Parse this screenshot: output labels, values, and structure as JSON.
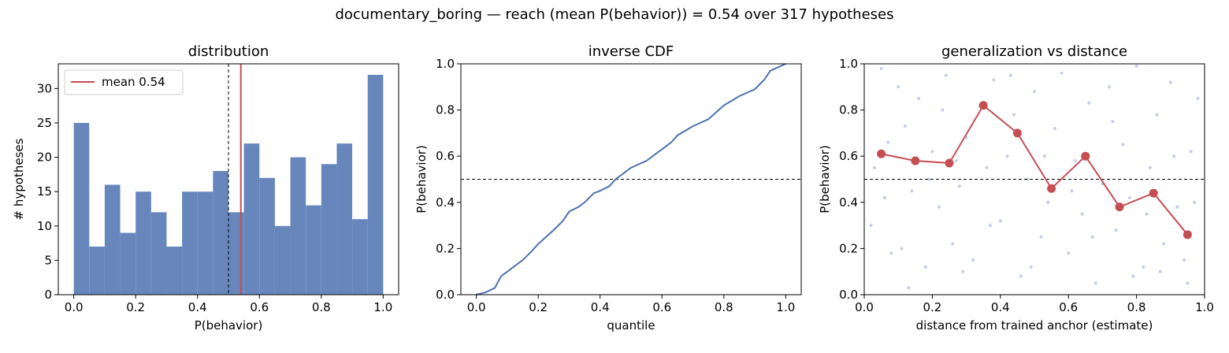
{
  "suptitle": "documentary_boring  —  reach (mean P(behavior)) = 0.54  over 317 hypotheses",
  "colors": {
    "bar": "#6787bc",
    "line": "#4c72b0",
    "accent": "#c44e52",
    "scatter": "#b4c3de"
  },
  "chart_data": [
    {
      "type": "bar",
      "title": "distribution",
      "xlabel": "P(behavior)",
      "ylabel": "# hypotheses",
      "xlim": [
        -0.05,
        1.05
      ],
      "ylim": [
        0,
        33.6
      ],
      "xticks": [
        "0.0",
        "0.2",
        "0.4",
        "0.6",
        "0.8",
        "1.0"
      ],
      "yticks": [
        "0",
        "5",
        "10",
        "15",
        "20",
        "25",
        "30"
      ],
      "bin_width": 0.05,
      "bin_starts": [
        0.0,
        0.05,
        0.1,
        0.15,
        0.2,
        0.25,
        0.3,
        0.35,
        0.4,
        0.45,
        0.5,
        0.55,
        0.6,
        0.65,
        0.7,
        0.75,
        0.8,
        0.85,
        0.9,
        0.95
      ],
      "values": [
        25,
        7,
        16,
        9,
        15,
        12,
        7,
        15,
        15,
        18,
        12,
        22,
        17,
        10,
        20,
        13,
        19,
        22,
        11,
        32
      ],
      "mean": 0.54,
      "threshold": 0.5,
      "legend": "mean 0.54",
      "legend_position": "upper-left"
    },
    {
      "type": "line",
      "title": "inverse CDF",
      "xlabel": "quantile",
      "ylabel": "P(behavior)",
      "xlim": [
        -0.05,
        1.05
      ],
      "ylim": [
        0,
        1
      ],
      "xticks": [
        "0.0",
        "0.2",
        "0.4",
        "0.6",
        "0.8",
        "1.0"
      ],
      "yticks": [
        "0.0",
        "0.2",
        "0.4",
        "0.6",
        "0.8",
        "1.0"
      ],
      "threshold": 0.5,
      "x": [
        0.0,
        0.03,
        0.06,
        0.08,
        0.1,
        0.12,
        0.15,
        0.18,
        0.2,
        0.25,
        0.28,
        0.3,
        0.33,
        0.35,
        0.38,
        0.4,
        0.43,
        0.45,
        0.5,
        0.55,
        0.58,
        0.6,
        0.63,
        0.65,
        0.7,
        0.75,
        0.8,
        0.85,
        0.9,
        0.93,
        0.95,
        1.0
      ],
      "y": [
        0.0,
        0.01,
        0.03,
        0.08,
        0.1,
        0.12,
        0.15,
        0.19,
        0.22,
        0.28,
        0.32,
        0.36,
        0.38,
        0.4,
        0.44,
        0.45,
        0.47,
        0.5,
        0.55,
        0.58,
        0.61,
        0.63,
        0.66,
        0.69,
        0.73,
        0.76,
        0.82,
        0.86,
        0.89,
        0.93,
        0.97,
        1.0
      ]
    },
    {
      "type": "scatter",
      "title": "generalization vs distance",
      "xlabel": "distance from trained anchor (estimate)",
      "ylabel": "P(behavior)",
      "xlim": [
        0,
        1
      ],
      "ylim": [
        0,
        1
      ],
      "xticks": [
        "0.0",
        "0.2",
        "0.4",
        "0.6",
        "0.8",
        "1.0"
      ],
      "yticks": [
        "0.0",
        "0.2",
        "0.4",
        "0.6",
        "0.8",
        "1.0"
      ],
      "threshold": 0.5,
      "bin_means": {
        "x": [
          0.05,
          0.15,
          0.25,
          0.35,
          0.45,
          0.55,
          0.65,
          0.75,
          0.85,
          0.95
        ],
        "y": [
          0.61,
          0.58,
          0.57,
          0.82,
          0.7,
          0.46,
          0.6,
          0.38,
          0.44,
          0.26
        ]
      },
      "points": [
        [
          0.05,
          0.98
        ],
        [
          0.03,
          0.55
        ],
        [
          0.02,
          0.3
        ],
        [
          0.06,
          0.42
        ],
        [
          0.08,
          0.18
        ],
        [
          0.1,
          0.9
        ],
        [
          0.12,
          0.73
        ],
        [
          0.14,
          0.45
        ],
        [
          0.16,
          0.85
        ],
        [
          0.18,
          0.12
        ],
        [
          0.2,
          0.62
        ],
        [
          0.22,
          0.38
        ],
        [
          0.24,
          0.95
        ],
        [
          0.26,
          0.22
        ],
        [
          0.28,
          0.47
        ],
        [
          0.3,
          0.68
        ],
        [
          0.32,
          0.15
        ],
        [
          0.34,
          0.82
        ],
        [
          0.36,
          0.55
        ],
        [
          0.38,
          0.93
        ],
        [
          0.4,
          0.32
        ],
        [
          0.42,
          0.6
        ],
        [
          0.44,
          0.78
        ],
        [
          0.46,
          0.08
        ],
        [
          0.48,
          0.5
        ],
        [
          0.5,
          0.88
        ],
        [
          0.52,
          0.25
        ],
        [
          0.54,
          0.4
        ],
        [
          0.56,
          0.72
        ],
        [
          0.58,
          0.96
        ],
        [
          0.6,
          0.18
        ],
        [
          0.62,
          0.58
        ],
        [
          0.64,
          0.35
        ],
        [
          0.66,
          0.83
        ],
        [
          0.68,
          0.05
        ],
        [
          0.7,
          0.48
        ],
        [
          0.72,
          0.9
        ],
        [
          0.74,
          0.28
        ],
        [
          0.76,
          0.65
        ],
        [
          0.78,
          0.42
        ],
        [
          0.8,
          0.99
        ],
        [
          0.82,
          0.12
        ],
        [
          0.84,
          0.55
        ],
        [
          0.86,
          0.78
        ],
        [
          0.88,
          0.22
        ],
        [
          0.9,
          0.92
        ],
        [
          0.92,
          0.38
        ],
        [
          0.94,
          0.15
        ],
        [
          0.96,
          0.62
        ],
        [
          0.98,
          0.85
        ],
        [
          0.07,
          0.66
        ],
        [
          0.11,
          0.2
        ],
        [
          0.19,
          0.5
        ],
        [
          0.23,
          0.8
        ],
        [
          0.29,
          0.1
        ],
        [
          0.37,
          0.3
        ],
        [
          0.43,
          0.95
        ],
        [
          0.49,
          0.12
        ],
        [
          0.53,
          0.6
        ],
        [
          0.61,
          0.45
        ],
        [
          0.67,
          0.25
        ],
        [
          0.73,
          0.75
        ],
        [
          0.79,
          0.08
        ],
        [
          0.83,
          0.35
        ],
        [
          0.87,
          0.1
        ],
        [
          0.91,
          0.6
        ],
        [
          0.95,
          0.05
        ],
        [
          0.97,
          0.4
        ],
        [
          0.13,
          0.03
        ],
        [
          0.27,
          0.58
        ]
      ]
    }
  ]
}
